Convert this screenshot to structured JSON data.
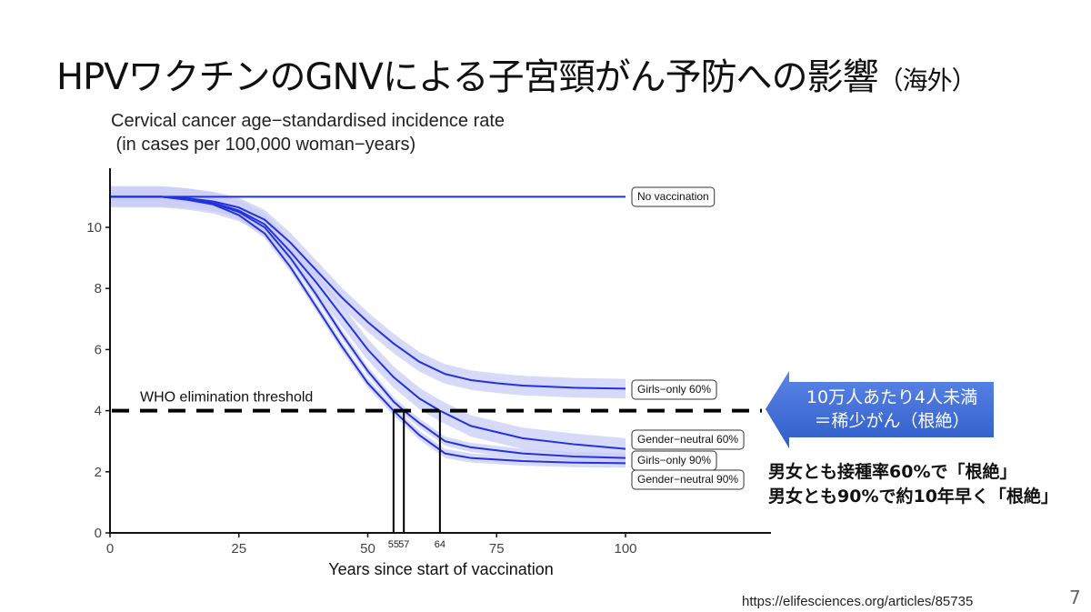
{
  "slide": {
    "title": "HPVワクチンのGNVによる子宮頸がん予防への影響",
    "title_suffix": "（海外）",
    "callout": {
      "line1": "10万人あたり4人未満",
      "line2": "＝稀少がん（根絶）",
      "color": "#3f6fd8",
      "icon": "left-arrow"
    },
    "notes": [
      "男女とも接種率60%で「根絶」",
      "男女とも90%で約10年早く「根絶」"
    ],
    "source": "https://elifesciences.org/articles/85735",
    "page_number": "7"
  },
  "chart_data": {
    "type": "line",
    "ylabel": "Cervical cancer age−standardised incidence rate\n (in cases per 100,000 woman−years)",
    "xlabel": "Years since start of vaccination",
    "xlim": [
      0,
      128
    ],
    "ylim": [
      0,
      11.8
    ],
    "xticks": [
      0,
      25,
      50,
      75,
      100
    ],
    "yticks": [
      0,
      2,
      4,
      6,
      8,
      10
    ],
    "grid": false,
    "line_color": "#2233dd",
    "band_color": "#c9ccf5",
    "threshold": {
      "label": "WHO elimination threshold",
      "y": 4
    },
    "crossing_years": [
      55,
      57,
      64
    ],
    "series": [
      {
        "name": "No vaccination",
        "x": [
          0,
          100
        ],
        "y": [
          11,
          11
        ],
        "band": 0
      },
      {
        "name": "Girls−only 60%",
        "x": [
          0,
          10,
          15,
          20,
          25,
          30,
          35,
          40,
          45,
          50,
          55,
          60,
          65,
          70,
          75,
          80,
          90,
          100
        ],
        "y": [
          11,
          11,
          10.95,
          10.85,
          10.65,
          10.25,
          9.5,
          8.6,
          7.7,
          6.9,
          6.2,
          5.6,
          5.2,
          5.0,
          4.9,
          4.82,
          4.75,
          4.72
        ],
        "band": 0.32
      },
      {
        "name": "Gender−neutral 60%",
        "x": [
          0,
          10,
          15,
          20,
          25,
          30,
          35,
          40,
          45,
          50,
          55,
          60,
          64,
          70,
          75,
          80,
          90,
          100
        ],
        "y": [
          11,
          11,
          10.93,
          10.8,
          10.55,
          10.1,
          9.2,
          8.2,
          7.1,
          6.0,
          5.1,
          4.4,
          4.0,
          3.5,
          3.3,
          3.1,
          2.9,
          2.75
        ],
        "band": 0.35
      },
      {
        "name": "Girls−only 90%",
        "x": [
          0,
          10,
          15,
          20,
          25,
          30,
          35,
          40,
          45,
          50,
          55,
          57,
          60,
          65,
          70,
          75,
          80,
          90,
          100
        ],
        "y": [
          11,
          11,
          10.92,
          10.78,
          10.5,
          10.0,
          9.0,
          7.8,
          6.5,
          5.3,
          4.3,
          4.0,
          3.6,
          3.0,
          2.8,
          2.7,
          2.6,
          2.5,
          2.45
        ],
        "band": 0.15
      },
      {
        "name": "Gender−neutral 90%",
        "x": [
          0,
          10,
          15,
          20,
          25,
          30,
          35,
          40,
          45,
          50,
          55,
          60,
          65,
          70,
          75,
          80,
          90,
          100
        ],
        "y": [
          11,
          11,
          10.9,
          10.75,
          10.4,
          9.8,
          8.7,
          7.4,
          6.1,
          4.9,
          4.0,
          3.2,
          2.6,
          2.45,
          2.4,
          2.35,
          2.3,
          2.28
        ],
        "band": 0.15
      }
    ]
  }
}
